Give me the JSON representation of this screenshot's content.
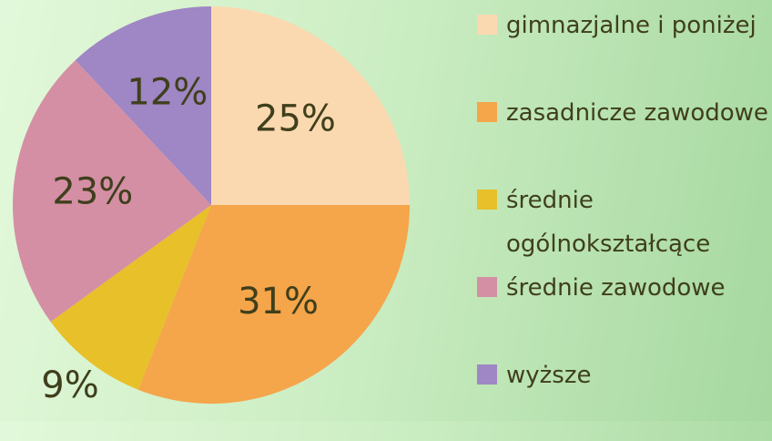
{
  "chart_data": {
    "type": "pie",
    "categories": [
      "gimnazjalne i poniżej",
      "zasadnicze zawodowe",
      "średnie ogólnokształcące",
      "średnie zawodowe",
      "wyższe"
    ],
    "values": [
      25,
      31,
      9,
      23,
      12
    ],
    "value_labels": [
      "25%",
      "31%",
      "9%",
      "23%",
      "12%"
    ],
    "colors": [
      "#fbd9b0",
      "#f5a54a",
      "#e8c02a",
      "#d48fa5",
      "#9f86c4"
    ],
    "legend": "right"
  }
}
